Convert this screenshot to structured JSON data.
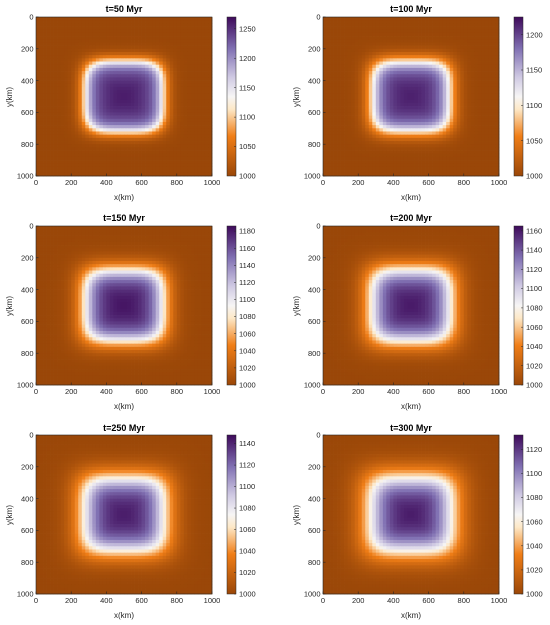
{
  "colors": {
    "low": "#9a4708",
    "mid_orange": "#f07e17",
    "pale": "#fde8c7",
    "white": "#f6f5f5",
    "lilac": "#d0cae3",
    "purple": "#8171b3",
    "dark": "#3e0a5a"
  },
  "chart_data": [
    {
      "type": "heatmap",
      "title": "t=50 Myr",
      "xlabel": "x(km)",
      "ylabel": "y(km)",
      "xlim": [
        0,
        1000
      ],
      "ylim": [
        0,
        1000
      ],
      "y_reversed": true,
      "x_ticks": [
        "0",
        "200",
        "400",
        "600",
        "800",
        "1000"
      ],
      "y_ticks": [
        "0",
        "200",
        "400",
        "600",
        "800",
        "1000"
      ],
      "background": 1000,
      "peak": 1260,
      "center": [
        500,
        500
      ],
      "half_width": 230,
      "edge_width": 50,
      "colorbar": {
        "min": 1000,
        "max": 1270,
        "ticks": [
          "1000",
          "1050",
          "1100",
          "1150",
          "1200",
          "1250"
        ]
      }
    },
    {
      "type": "heatmap",
      "title": "t=100 Myr",
      "xlabel": "x(km)",
      "ylabel": "y(km)",
      "xlim": [
        0,
        1000
      ],
      "ylim": [
        0,
        1000
      ],
      "y_reversed": true,
      "x_ticks": [
        "0",
        "200",
        "400",
        "600",
        "800",
        "1000"
      ],
      "y_ticks": [
        "0",
        "200",
        "400",
        "600",
        "800",
        "1000"
      ],
      "background": 1000,
      "peak": 1215,
      "center": [
        500,
        500
      ],
      "half_width": 230,
      "edge_width": 60,
      "colorbar": {
        "min": 1000,
        "max": 1225,
        "ticks": [
          "1000",
          "1050",
          "1100",
          "1150",
          "1200"
        ]
      }
    },
    {
      "type": "heatmap",
      "title": "t=150 Myr",
      "xlabel": "x(km)",
      "ylabel": "y(km)",
      "xlim": [
        0,
        1000
      ],
      "ylim": [
        0,
        1000
      ],
      "y_reversed": true,
      "x_ticks": [
        "0",
        "200",
        "400",
        "600",
        "800",
        "1000"
      ],
      "y_ticks": [
        "0",
        "200",
        "400",
        "600",
        "800",
        "1000"
      ],
      "background": 1000,
      "peak": 1182,
      "center": [
        500,
        500
      ],
      "half_width": 235,
      "edge_width": 75,
      "colorbar": {
        "min": 1000,
        "max": 1186,
        "ticks": [
          "1000",
          "1020",
          "1040",
          "1060",
          "1080",
          "1100",
          "1120",
          "1140",
          "1160",
          "1180"
        ]
      }
    },
    {
      "type": "heatmap",
      "title": "t=200 Myr",
      "xlabel": "x(km)",
      "ylabel": "y(km)",
      "xlim": [
        0,
        1000
      ],
      "ylim": [
        0,
        1000
      ],
      "y_reversed": true,
      "x_ticks": [
        "0",
        "200",
        "400",
        "600",
        "800",
        "1000"
      ],
      "y_ticks": [
        "0",
        "200",
        "400",
        "600",
        "800",
        "1000"
      ],
      "background": 1000,
      "peak": 1160,
      "center": [
        500,
        500
      ],
      "half_width": 240,
      "edge_width": 85,
      "colorbar": {
        "min": 1000,
        "max": 1165,
        "ticks": [
          "1000",
          "1020",
          "1040",
          "1060",
          "1080",
          "1100",
          "1120",
          "1140",
          "1160"
        ]
      }
    },
    {
      "type": "heatmap",
      "title": "t=250 Myr",
      "xlabel": "x(km)",
      "ylabel": "y(km)",
      "xlim": [
        0,
        1000
      ],
      "ylim": [
        0,
        1000
      ],
      "y_reversed": true,
      "x_ticks": [
        "0",
        "200",
        "400",
        "600",
        "800",
        "1000"
      ],
      "y_ticks": [
        "0",
        "200",
        "400",
        "600",
        "800",
        "1000"
      ],
      "background": 1000,
      "peak": 1143,
      "center": [
        500,
        500
      ],
      "half_width": 245,
      "edge_width": 95,
      "colorbar": {
        "min": 1000,
        "max": 1148,
        "ticks": [
          "1000",
          "1020",
          "1040",
          "1060",
          "1080",
          "1100",
          "1120",
          "1140"
        ]
      }
    },
    {
      "type": "heatmap",
      "title": "t=300 Myr",
      "xlabel": "x(km)",
      "ylabel": "y(km)",
      "xlim": [
        0,
        1000
      ],
      "ylim": [
        0,
        1000
      ],
      "y_reversed": true,
      "x_ticks": [
        "0",
        "200",
        "400",
        "600",
        "800",
        "1000"
      ],
      "y_ticks": [
        "0",
        "200",
        "400",
        "600",
        "800",
        "1000"
      ],
      "background": 1000,
      "peak": 1128,
      "center": [
        500,
        500
      ],
      "half_width": 250,
      "edge_width": 105,
      "colorbar": {
        "min": 1000,
        "max": 1132,
        "ticks": [
          "1000",
          "1020",
          "1040",
          "1060",
          "1080",
          "1100",
          "1120"
        ]
      }
    }
  ]
}
